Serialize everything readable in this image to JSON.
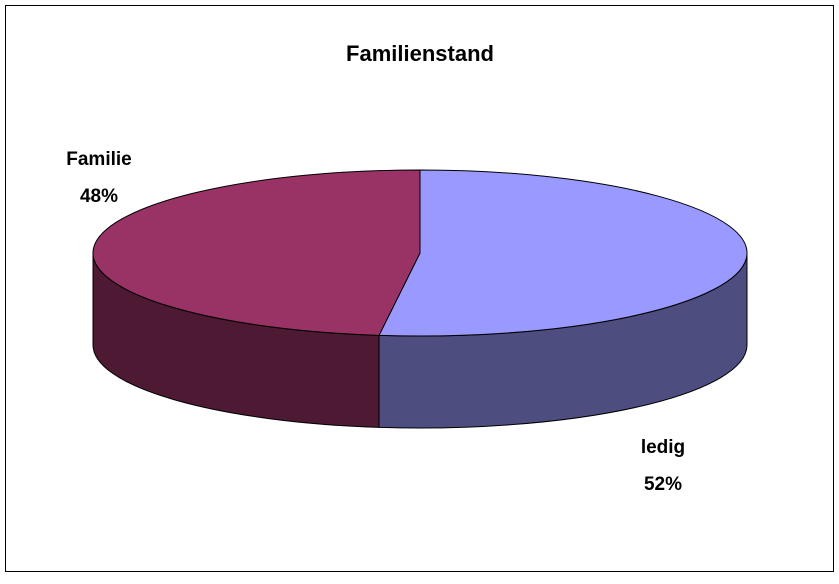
{
  "chart_data": {
    "type": "pie3d",
    "title": "Familienstand",
    "categories": [
      "ledig",
      "Familie"
    ],
    "values": [
      52,
      48
    ],
    "value_labels": [
      "52%",
      "48%"
    ],
    "series": [
      {
        "name": "Familienstand",
        "colors": [
          "#9999ff",
          "#993366"
        ],
        "side_colors": [
          "#4d4d80",
          "#4d1933"
        ]
      }
    ]
  }
}
